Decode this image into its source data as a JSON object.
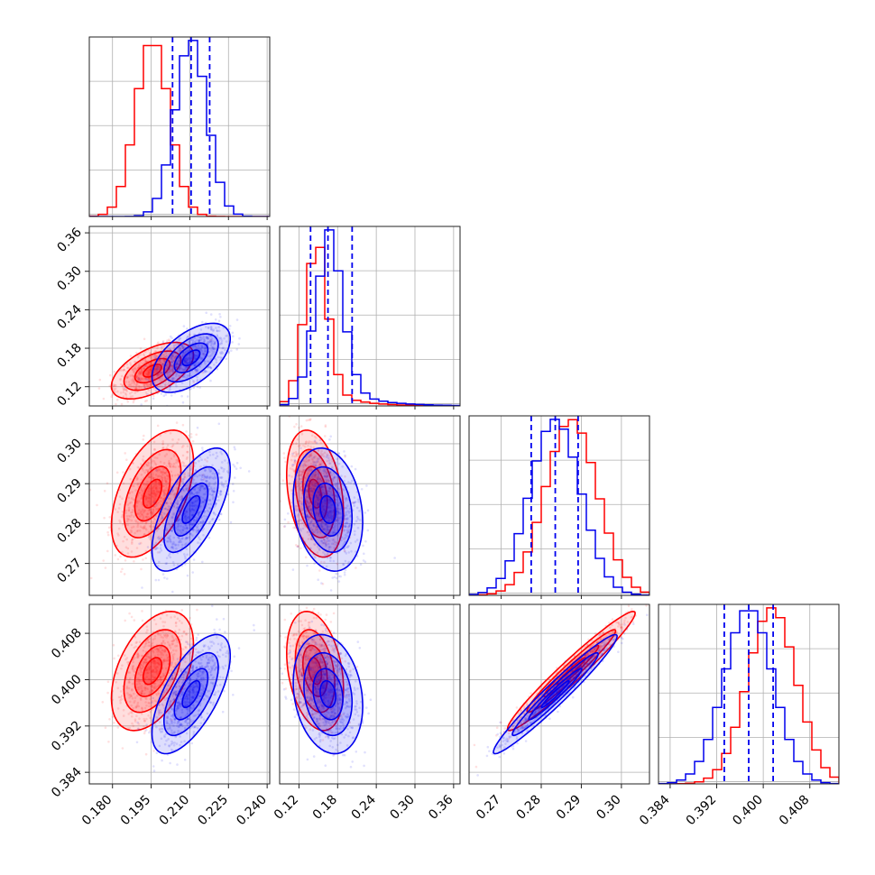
{
  "chart_data": {
    "type": "corner",
    "grid": true,
    "colors": {
      "red": "#ff0000",
      "blue": "#0000ee"
    },
    "series": [
      {
        "color": "#ff0000",
        "mean": [
          0.1955,
          0.145,
          0.2875,
          0.4015
        ],
        "std": [
          0.0065,
          0.018,
          0.0065,
          0.0042
        ]
      },
      {
        "color": "#0000ee",
        "mean": [
          0.2105,
          0.165,
          0.2835,
          0.3975
        ],
        "std": [
          0.0062,
          0.022,
          0.0063,
          0.0042
        ]
      }
    ],
    "correlations": [
      {
        "i": 1,
        "j": 0,
        "red": 0.55,
        "blue": 0.55
      },
      {
        "i": 2,
        "j": 0,
        "red": 0.5,
        "blue": 0.65
      },
      {
        "i": 2,
        "j": 1,
        "red": -0.3,
        "blue": -0.2
      },
      {
        "i": 3,
        "j": 0,
        "red": 0.45,
        "blue": 0.65
      },
      {
        "i": 3,
        "j": 1,
        "red": -0.3,
        "blue": -0.2
      },
      {
        "i": 3,
        "j": 2,
        "red": 0.97,
        "blue": 0.97
      }
    ],
    "quantile_lines": [
      [
        0.2033,
        0.2105,
        0.2177
      ],
      [
        0.138,
        0.165,
        0.2025
      ],
      [
        0.2775,
        0.2835,
        0.2892
      ],
      [
        0.3933,
        0.3975,
        0.4017
      ]
    ],
    "ranges": [
      [
        0.171,
        0.241
      ],
      [
        0.09,
        0.37
      ],
      [
        0.262,
        0.307
      ],
      [
        0.382,
        0.413
      ]
    ],
    "ticks": [
      [
        "0.180",
        "0.195",
        "0.210",
        "0.225",
        "0.240"
      ],
      [
        "0.12",
        "0.18",
        "0.24",
        "0.30",
        "0.36"
      ],
      [
        "0.27",
        "0.28",
        "0.29",
        "0.30"
      ],
      [
        "0.384",
        "0.392",
        "0.400",
        "0.408"
      ]
    ]
  }
}
